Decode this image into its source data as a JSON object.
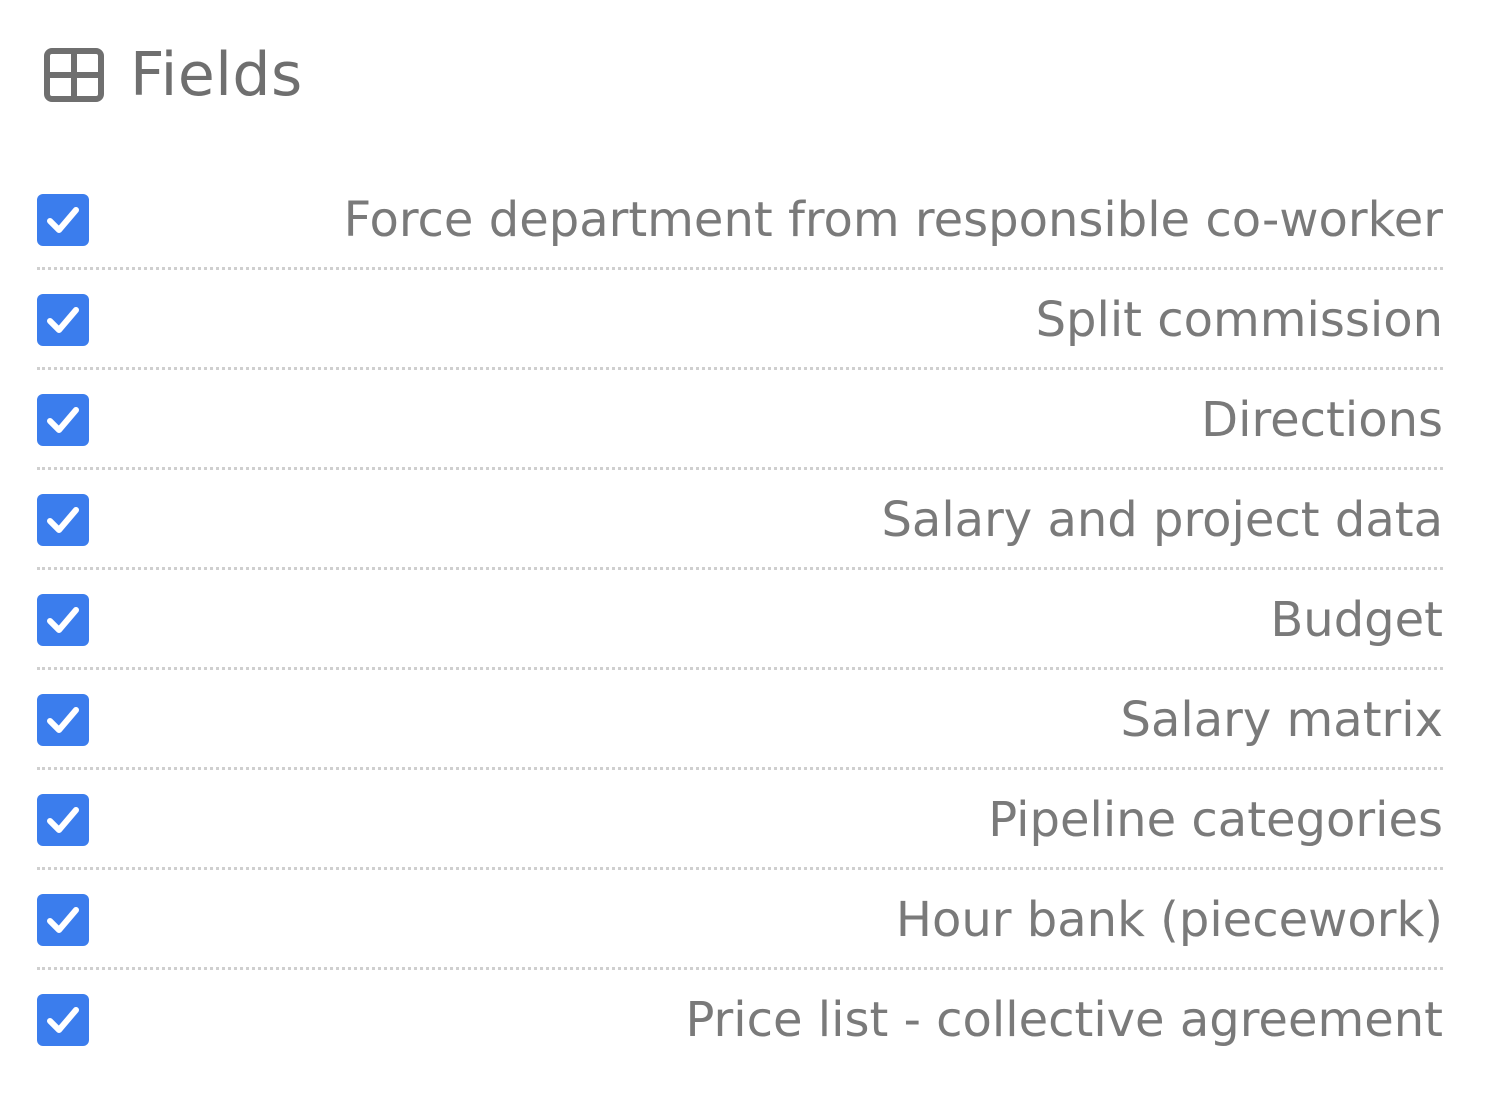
{
  "header": {
    "icon": "grid-icon",
    "title": "Fields"
  },
  "colors": {
    "checkbox_fill": "#3b7ded",
    "label_text": "#7a7a7a",
    "title_text": "#6f6f6f",
    "divider": "#cfcfcf"
  },
  "fields": [
    {
      "label": "Force department from responsible co-worker",
      "checked": true
    },
    {
      "label": "Split commission",
      "checked": true
    },
    {
      "label": "Directions",
      "checked": true
    },
    {
      "label": "Salary and project data",
      "checked": true
    },
    {
      "label": "Budget",
      "checked": true
    },
    {
      "label": "Salary matrix",
      "checked": true
    },
    {
      "label": "Pipeline categories",
      "checked": true
    },
    {
      "label": "Hour bank (piecework)",
      "checked": true
    },
    {
      "label": "Price list - collective agreement",
      "checked": true
    }
  ]
}
